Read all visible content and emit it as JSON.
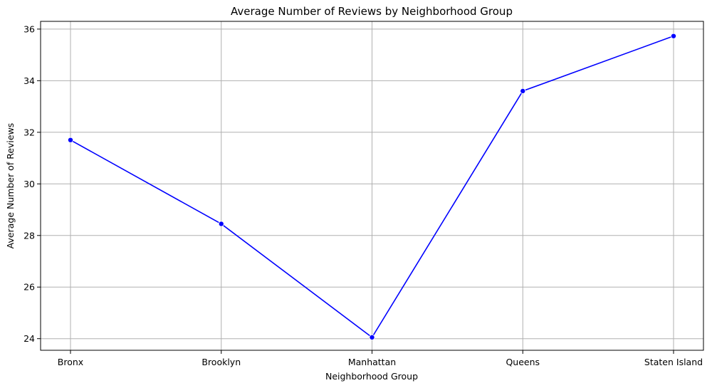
{
  "chart_data": {
    "type": "line",
    "title": "Average Number of Reviews by Neighborhood Group",
    "xlabel": "Neighborhood Group",
    "ylabel": "Average Number of Reviews",
    "categories": [
      "Bronx",
      "Brooklyn",
      "Manhattan",
      "Queens",
      "Staten Island"
    ],
    "series": [
      {
        "values": [
          31.7,
          28.45,
          24.05,
          33.6,
          35.73
        ],
        "color": "#0000ff",
        "marker": "circle"
      }
    ],
    "ylim": [
      23.55,
      36.3
    ],
    "yticks": [
      24,
      26,
      28,
      30,
      32,
      34,
      36
    ],
    "grid": true,
    "legend": "none"
  }
}
